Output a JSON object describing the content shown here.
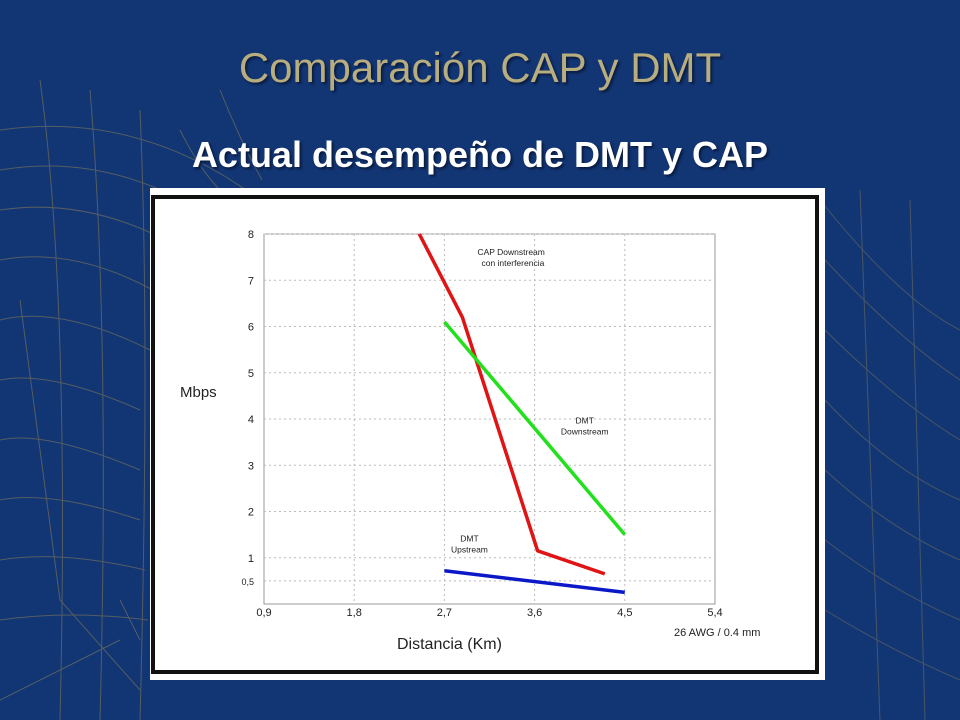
{
  "slide": {
    "title": "Comparación CAP y DMT",
    "subtitle": "Actual desempeño de DMT y CAP"
  },
  "colors": {
    "background": "#123574",
    "title": "#b8ad7e",
    "decor_lines": "#8a7f55",
    "cap": "#e01414",
    "dmt_down": "#22e01c",
    "dmt_up": "#0a18c8"
  },
  "chart_data": {
    "type": "line",
    "xlabel": "Distancia (Km)",
    "ylabel": "Mbps",
    "note": "26 AWG / 0.4 mm",
    "xlim": [
      0.9,
      5.4
    ],
    "ylim": [
      0,
      8
    ],
    "x_ticks": [
      "0,9",
      "1,8",
      "2,7",
      "3,6",
      "4,5",
      "5,4"
    ],
    "x_tick_values": [
      0.9,
      1.8,
      2.7,
      3.6,
      4.5,
      5.4
    ],
    "y_ticks": [
      "0,5",
      "1",
      "2",
      "3",
      "4",
      "5",
      "6",
      "7",
      "8"
    ],
    "y_tick_values": [
      0.5,
      1,
      2,
      3,
      4,
      5,
      6,
      7,
      8
    ],
    "grid": true,
    "series": [
      {
        "label_lines": [
          "CAP Downstream",
          "con interferencia"
        ],
        "color": "#e01414",
        "x": [
          2.45,
          2.88,
          3.63,
          4.3
        ],
        "y": [
          8.0,
          6.2,
          1.15,
          0.65
        ]
      },
      {
        "label_lines": [
          "DMT",
          "Downstream"
        ],
        "color": "#22e01c",
        "x": [
          2.7,
          4.5
        ],
        "y": [
          6.1,
          1.5
        ]
      },
      {
        "label_lines": [
          "DMT",
          "Upstream"
        ],
        "color": "#0a18c8",
        "x": [
          2.7,
          4.5
        ],
        "y": [
          0.72,
          0.25
        ]
      }
    ]
  }
}
